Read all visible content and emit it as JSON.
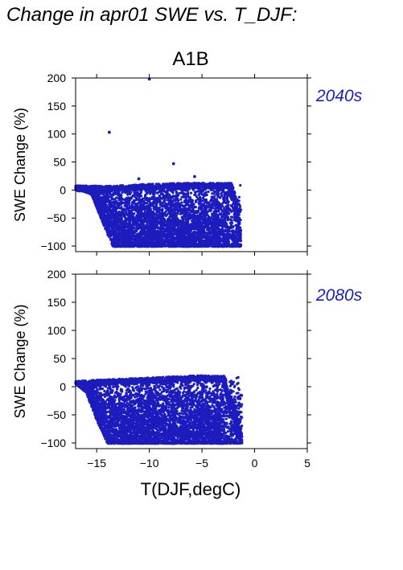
{
  "figure": {
    "title": "Change in apr01 SWE vs. T_DJF:",
    "scenario": "A1B",
    "xlabel": "T(DJF,degC)",
    "point_color": "#1c1cbe",
    "label_color": "#1c1cbe"
  },
  "chart_data": [
    {
      "type": "scatter",
      "panel_label": "2040s",
      "ylabel": "SWE Change (%)",
      "xlabel": "",
      "xlim": [
        -17,
        5
      ],
      "ylim": [
        -110,
        200
      ],
      "xticks": [
        -15,
        -10,
        -5,
        0,
        5
      ],
      "yticks": [
        -100,
        -50,
        0,
        50,
        100,
        150,
        200
      ],
      "grid": false,
      "series": [
        {
          "outliers": [
            [
              -10.0,
              198
            ],
            [
              -13.8,
              103
            ],
            [
              -7.7,
              47
            ],
            [
              -5.7,
              24
            ],
            [
              -11.0,
              20
            ]
          ],
          "cloud_upper": [
            [
              -17,
              8
            ],
            [
              -14,
              7
            ],
            [
              -11,
              10
            ],
            [
              -8,
              12
            ],
            [
              -5,
              13
            ],
            [
              -2.5,
              12
            ]
          ],
          "cloud_lower": [
            [
              -17,
              3
            ],
            [
              -15.5,
              -8
            ],
            [
              -14.5,
              -55
            ],
            [
              -13.5,
              -100
            ],
            [
              -10,
              -100
            ],
            [
              -6,
              -100
            ],
            [
              -2,
              -100
            ],
            [
              -1.3,
              -100
            ]
          ],
          "right_edge": [
            [
              -2.5,
              12
            ],
            [
              -2.0,
              -10
            ],
            [
              -1.5,
              -50
            ],
            [
              -1.3,
              -100
            ]
          ],
          "floor_y": -100,
          "floor_x_range": [
            -13.5,
            -1.3
          ]
        }
      ]
    },
    {
      "type": "scatter",
      "panel_label": "2080s",
      "ylabel": "SWE Change (%)",
      "xlabel": "T(DJF,degC)",
      "xlim": [
        -17,
        5
      ],
      "ylim": [
        -110,
        200
      ],
      "xticks": [
        -15,
        -10,
        -5,
        0,
        5
      ],
      "xticklabels": [
        "−15",
        "−10",
        "−5",
        "0",
        "5"
      ],
      "yticks": [
        -100,
        -50,
        0,
        50,
        100,
        150,
        200
      ],
      "grid": false,
      "series": [
        {
          "outliers": [],
          "cloud_upper": [
            [
              -17,
              10
            ],
            [
              -14,
              13
            ],
            [
              -11,
              15
            ],
            [
              -8,
              18
            ],
            [
              -5,
              20
            ],
            [
              -3,
              19
            ]
          ],
          "cloud_lower": [
            [
              -17,
              5
            ],
            [
              -16,
              -10
            ],
            [
              -15,
              -60
            ],
            [
              -14,
              -100
            ],
            [
              -10,
              -100
            ],
            [
              -6,
              -100
            ],
            [
              -2,
              -100
            ],
            [
              -1.2,
              -100
            ]
          ],
          "right_edge": [
            [
              -3,
              19
            ],
            [
              -2.5,
              -20
            ],
            [
              -1.8,
              -60
            ],
            [
              -1.2,
              -100
            ]
          ],
          "floor_y": -100,
          "floor_x_range": [
            -14,
            -1.2
          ]
        }
      ]
    }
  ]
}
